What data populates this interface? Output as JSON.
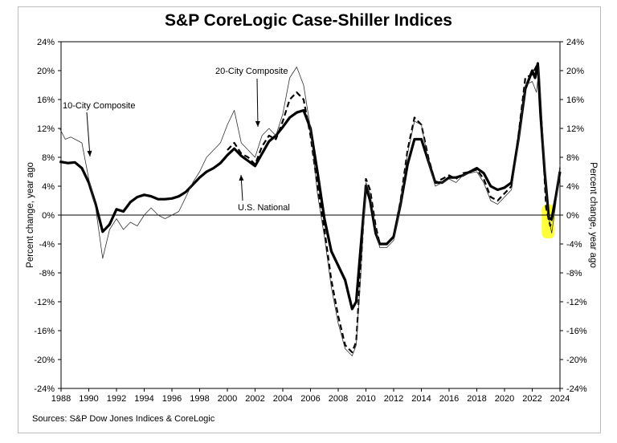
{
  "chart_data": {
    "type": "line",
    "title": "S&P CoreLogic Case-Shiller Indices",
    "source": "Sources: S&P Dow Jones Indices & CoreLogic",
    "ylabel_left": "Percent change, year ago",
    "ylabel_right": "Percent change, year ago",
    "xlim": [
      1988,
      2024
    ],
    "ylim": [
      -24,
      24
    ],
    "x_ticks": [
      "1988",
      "1990",
      "1992",
      "1994",
      "1996",
      "1998",
      "2000",
      "2002",
      "2004",
      "2006",
      "2008",
      "2010",
      "2012",
      "2014",
      "2016",
      "2018",
      "2020",
      "2022",
      "2024"
    ],
    "y_ticks": [
      "24%",
      "20%",
      "16%",
      "12%",
      "8%",
      "4%",
      "0%",
      "-4%",
      "-8%",
      "-12%",
      "-16%",
      "-20%",
      "-24%"
    ],
    "annotations": [
      {
        "text": "10-City Composite",
        "x": 1990.0,
        "y": 12.3
      },
      {
        "text": "20-City Composite",
        "x": 2002.2,
        "y": 19.8
      },
      {
        "text": "U.S. National",
        "x": 2003.0,
        "y": 0.5
      }
    ],
    "highlight": {
      "x": [
        2022.8,
        2023.5
      ],
      "y": [
        -3,
        1
      ]
    },
    "series": [
      {
        "name": "U.S. National",
        "style": "thick",
        "points": [
          [
            1987.9,
            7.4
          ],
          [
            1988.5,
            7.2
          ],
          [
            1989,
            7.3
          ],
          [
            1989.5,
            6.5
          ],
          [
            1990,
            4.5
          ],
          [
            1990.5,
            1.5
          ],
          [
            1991,
            -2.3
          ],
          [
            1991.5,
            -1.3
          ],
          [
            1992,
            0.8
          ],
          [
            1992.5,
            0.5
          ],
          [
            1993,
            1.8
          ],
          [
            1993.5,
            2.5
          ],
          [
            1994,
            2.8
          ],
          [
            1994.5,
            2.6
          ],
          [
            1995,
            2.2
          ],
          [
            1995.5,
            2.2
          ],
          [
            1996,
            2.3
          ],
          [
            1996.5,
            2.6
          ],
          [
            1997,
            3.2
          ],
          [
            1997.5,
            4.2
          ],
          [
            1998,
            5.2
          ],
          [
            1998.5,
            6
          ],
          [
            1999,
            6.5
          ],
          [
            1999.5,
            7.2
          ],
          [
            2000,
            8.3
          ],
          [
            2000.5,
            9.2
          ],
          [
            2001,
            8.2
          ],
          [
            2001.5,
            7.5
          ],
          [
            2002,
            6.8
          ],
          [
            2002.5,
            8.5
          ],
          [
            2003,
            10.2
          ],
          [
            2003.5,
            11
          ],
          [
            2004,
            12.2
          ],
          [
            2004.5,
            13.5
          ],
          [
            2005,
            14.2
          ],
          [
            2005.5,
            14.5
          ],
          [
            2006,
            12
          ],
          [
            2006.5,
            6
          ],
          [
            2007,
            -0.5
          ],
          [
            2007.5,
            -5
          ],
          [
            2008,
            -7
          ],
          [
            2008.5,
            -9
          ],
          [
            2009,
            -13
          ],
          [
            2009.3,
            -12
          ],
          [
            2009.6,
            -5
          ],
          [
            2010,
            4
          ],
          [
            2010.3,
            2
          ],
          [
            2010.7,
            -2.5
          ],
          [
            2011,
            -4
          ],
          [
            2011.5,
            -4
          ],
          [
            2012,
            -3
          ],
          [
            2012.5,
            1.5
          ],
          [
            2013,
            7
          ],
          [
            2013.5,
            10.5
          ],
          [
            2014,
            10.5
          ],
          [
            2014.5,
            7.5
          ],
          [
            2015,
            4.5
          ],
          [
            2015.5,
            4.5
          ],
          [
            2016,
            5.2
          ],
          [
            2016.5,
            5.2
          ],
          [
            2017,
            5.5
          ],
          [
            2017.5,
            6
          ],
          [
            2018,
            6.5
          ],
          [
            2018.5,
            5.8
          ],
          [
            2019,
            4
          ],
          [
            2019.5,
            3.5
          ],
          [
            2020,
            3.8
          ],
          [
            2020.5,
            4.5
          ],
          [
            2021,
            10.5
          ],
          [
            2021.5,
            17.5
          ],
          [
            2022,
            20
          ],
          [
            2022.2,
            19
          ],
          [
            2022.4,
            21
          ],
          [
            2022.6,
            14
          ],
          [
            2022.9,
            6
          ],
          [
            2023.2,
            -0.5
          ],
          [
            2023.4,
            -0.5
          ],
          [
            2023.7,
            2.5
          ],
          [
            2024,
            6
          ]
        ]
      },
      {
        "name": "20-City Composite",
        "style": "dashed",
        "points": [
          [
            2000,
            9
          ],
          [
            2000.5,
            10
          ],
          [
            2001,
            8.5
          ],
          [
            2001.5,
            8
          ],
          [
            2002,
            7
          ],
          [
            2002.5,
            9.5
          ],
          [
            2003,
            11
          ],
          [
            2003.5,
            10.5
          ],
          [
            2004,
            13
          ],
          [
            2004.5,
            16
          ],
          [
            2005,
            17
          ],
          [
            2005.5,
            16
          ],
          [
            2006,
            11
          ],
          [
            2006.5,
            4
          ],
          [
            2007,
            -2
          ],
          [
            2007.5,
            -9
          ],
          [
            2008,
            -14
          ],
          [
            2008.5,
            -18
          ],
          [
            2009,
            -19
          ],
          [
            2009.3,
            -17.5
          ],
          [
            2009.6,
            -8
          ],
          [
            2010,
            5
          ],
          [
            2010.3,
            3.5
          ],
          [
            2010.7,
            -1.5
          ],
          [
            2011,
            -4
          ],
          [
            2011.5,
            -4
          ],
          [
            2012,
            -3
          ],
          [
            2012.5,
            2
          ],
          [
            2013,
            9
          ],
          [
            2013.5,
            13.5
          ],
          [
            2014,
            12.5
          ],
          [
            2014.5,
            8
          ],
          [
            2015,
            4.5
          ],
          [
            2015.5,
            5
          ],
          [
            2016,
            5.5
          ],
          [
            2016.5,
            5
          ],
          [
            2017,
            5.8
          ],
          [
            2017.5,
            6
          ],
          [
            2018,
            6.3
          ],
          [
            2018.5,
            5
          ],
          [
            2019,
            2.5
          ],
          [
            2019.5,
            2
          ],
          [
            2020,
            3
          ],
          [
            2020.5,
            4
          ],
          [
            2021,
            11
          ],
          [
            2021.5,
            19
          ],
          [
            2022,
            19.5
          ],
          [
            2022.4,
            21
          ],
          [
            2022.7,
            12
          ],
          [
            2023,
            1
          ],
          [
            2023.3,
            -1.5
          ],
          [
            2023.6,
            1
          ],
          [
            2024,
            6.5
          ]
        ]
      },
      {
        "name": "10-City Composite",
        "style": "thin",
        "points": [
          [
            1987.9,
            12
          ],
          [
            1988.3,
            10.5
          ],
          [
            1988.7,
            10.8
          ],
          [
            1989,
            10.5
          ],
          [
            1989.5,
            10
          ],
          [
            1990,
            5
          ],
          [
            1990.5,
            1
          ],
          [
            1991,
            -6
          ],
          [
            1991.5,
            -2
          ],
          [
            1992,
            -0.5
          ],
          [
            1992.5,
            -2
          ],
          [
            1993,
            -1
          ],
          [
            1993.5,
            -1.5
          ],
          [
            1994,
            0
          ],
          [
            1994.5,
            1
          ],
          [
            1995,
            0
          ],
          [
            1995.5,
            -0.5
          ],
          [
            1996,
            0
          ],
          [
            1996.5,
            0.5
          ],
          [
            1997,
            2.5
          ],
          [
            1997.5,
            4.5
          ],
          [
            1998,
            6
          ],
          [
            1998.5,
            8
          ],
          [
            1999,
            9
          ],
          [
            1999.5,
            10
          ],
          [
            2000,
            12.5
          ],
          [
            2000.5,
            14.5
          ],
          [
            2001,
            10
          ],
          [
            2001.5,
            9
          ],
          [
            2002,
            8
          ],
          [
            2002.5,
            11
          ],
          [
            2003,
            12
          ],
          [
            2003.5,
            11
          ],
          [
            2004,
            14
          ],
          [
            2004.5,
            19
          ],
          [
            2005,
            20.5
          ],
          [
            2005.5,
            18
          ],
          [
            2006,
            12
          ],
          [
            2006.5,
            3
          ],
          [
            2007,
            -3
          ],
          [
            2007.5,
            -10
          ],
          [
            2008,
            -15
          ],
          [
            2008.5,
            -18.5
          ],
          [
            2009,
            -19.5
          ],
          [
            2009.3,
            -18
          ],
          [
            2009.6,
            -9
          ],
          [
            2010,
            4.5
          ],
          [
            2010.3,
            3
          ],
          [
            2010.7,
            -2
          ],
          [
            2011,
            -4.5
          ],
          [
            2011.5,
            -4.5
          ],
          [
            2012,
            -3.5
          ],
          [
            2012.5,
            1.5
          ],
          [
            2013,
            8.5
          ],
          [
            2013.5,
            13
          ],
          [
            2014,
            12.5
          ],
          [
            2014.5,
            7.5
          ],
          [
            2015,
            4
          ],
          [
            2015.5,
            4.5
          ],
          [
            2016,
            5
          ],
          [
            2016.5,
            4.5
          ],
          [
            2017,
            5.5
          ],
          [
            2017.5,
            5.8
          ],
          [
            2018,
            6
          ],
          [
            2018.5,
            4.5
          ],
          [
            2019,
            2
          ],
          [
            2019.5,
            1.5
          ],
          [
            2020,
            2.5
          ],
          [
            2020.5,
            3.5
          ],
          [
            2021,
            10
          ],
          [
            2021.5,
            18
          ],
          [
            2022,
            18.5
          ],
          [
            2022.3,
            17
          ],
          [
            2022.5,
            20.5
          ],
          [
            2022.8,
            10
          ],
          [
            2023.1,
            0.5
          ],
          [
            2023.4,
            -2.5
          ],
          [
            2023.7,
            1.5
          ],
          [
            2024,
            7
          ]
        ]
      }
    ]
  }
}
